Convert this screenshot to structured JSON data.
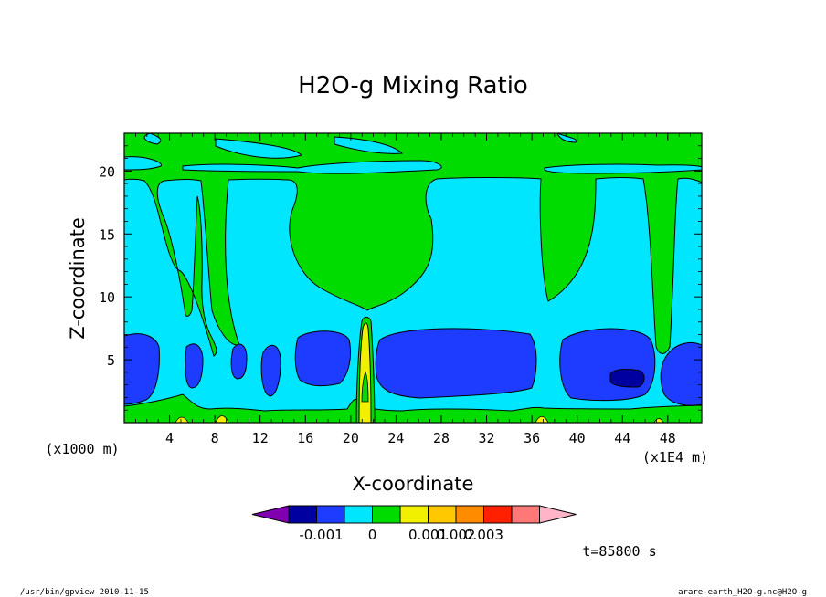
{
  "chart_data": {
    "type": "heatmap",
    "title": "H2O-g Mixing Ratio",
    "xlabel": "X-coordinate",
    "ylabel": "Z-coordinate",
    "x_unit_label": "(x1E4 m)",
    "y_unit_label": "(x1000 m)",
    "xlim": [
      0,
      51
    ],
    "ylim": [
      0,
      23
    ],
    "x_ticks": [
      4,
      8,
      12,
      16,
      20,
      24,
      28,
      32,
      36,
      40,
      44,
      48
    ],
    "y_ticks": [
      5,
      10,
      15,
      20
    ],
    "colorbar": {
      "colors": [
        "#8000b0",
        "#0000a0",
        "#1e3cff",
        "#00e6ff",
        "#00dc00",
        "#f0f000",
        "#ffc800",
        "#ff8c00",
        "#ff2000",
        "#ff7878",
        "#ffb4c8"
      ],
      "tick_labels": [
        "-0.001",
        "0",
        "0.001",
        "0.002",
        "0.003"
      ]
    },
    "regions": {
      "upper_green_band_z": [
        19.5,
        23
      ],
      "cyan_streak_z": [
        20.4,
        21.2
      ],
      "lower_blue_band_z": [
        1.5,
        7.2
      ],
      "column_center_x": 21.2,
      "column_top_z": 8,
      "dark_core": {
        "x": [
          43.2,
          46.5
        ],
        "z": [
          3.0,
          4.2
        ]
      },
      "blue_blobs": [
        {
          "x": [
            0.2,
            2.0
          ],
          "z": [
            1.5,
            6.8
          ]
        },
        {
          "x": [
            5.3,
            6.8
          ],
          "z": [
            2.2,
            6.2
          ]
        },
        {
          "x": [
            9.6,
            10.8
          ],
          "z": [
            3.5,
            6.3
          ]
        },
        {
          "x": [
            12.0,
            13.8
          ],
          "z": [
            2.2,
            6.3
          ]
        },
        {
          "x": [
            15.2,
            20.3
          ],
          "z": [
            2.9,
            7.3
          ]
        },
        {
          "x": [
            22.2,
            36.3
          ],
          "z": [
            2.0,
            7.5
          ]
        },
        {
          "x": [
            38.3,
            46.9
          ],
          "z": [
            1.7,
            7.4
          ]
        },
        {
          "x": [
            47.7,
            51.0
          ],
          "z": [
            1.3,
            6.8
          ]
        }
      ]
    },
    "time_label": "t=85800 s"
  },
  "footer": {
    "left": "/usr/bin/gpview   2010-11-15",
    "right": "arare-earth_H2O-g.nc@H2O-g"
  }
}
